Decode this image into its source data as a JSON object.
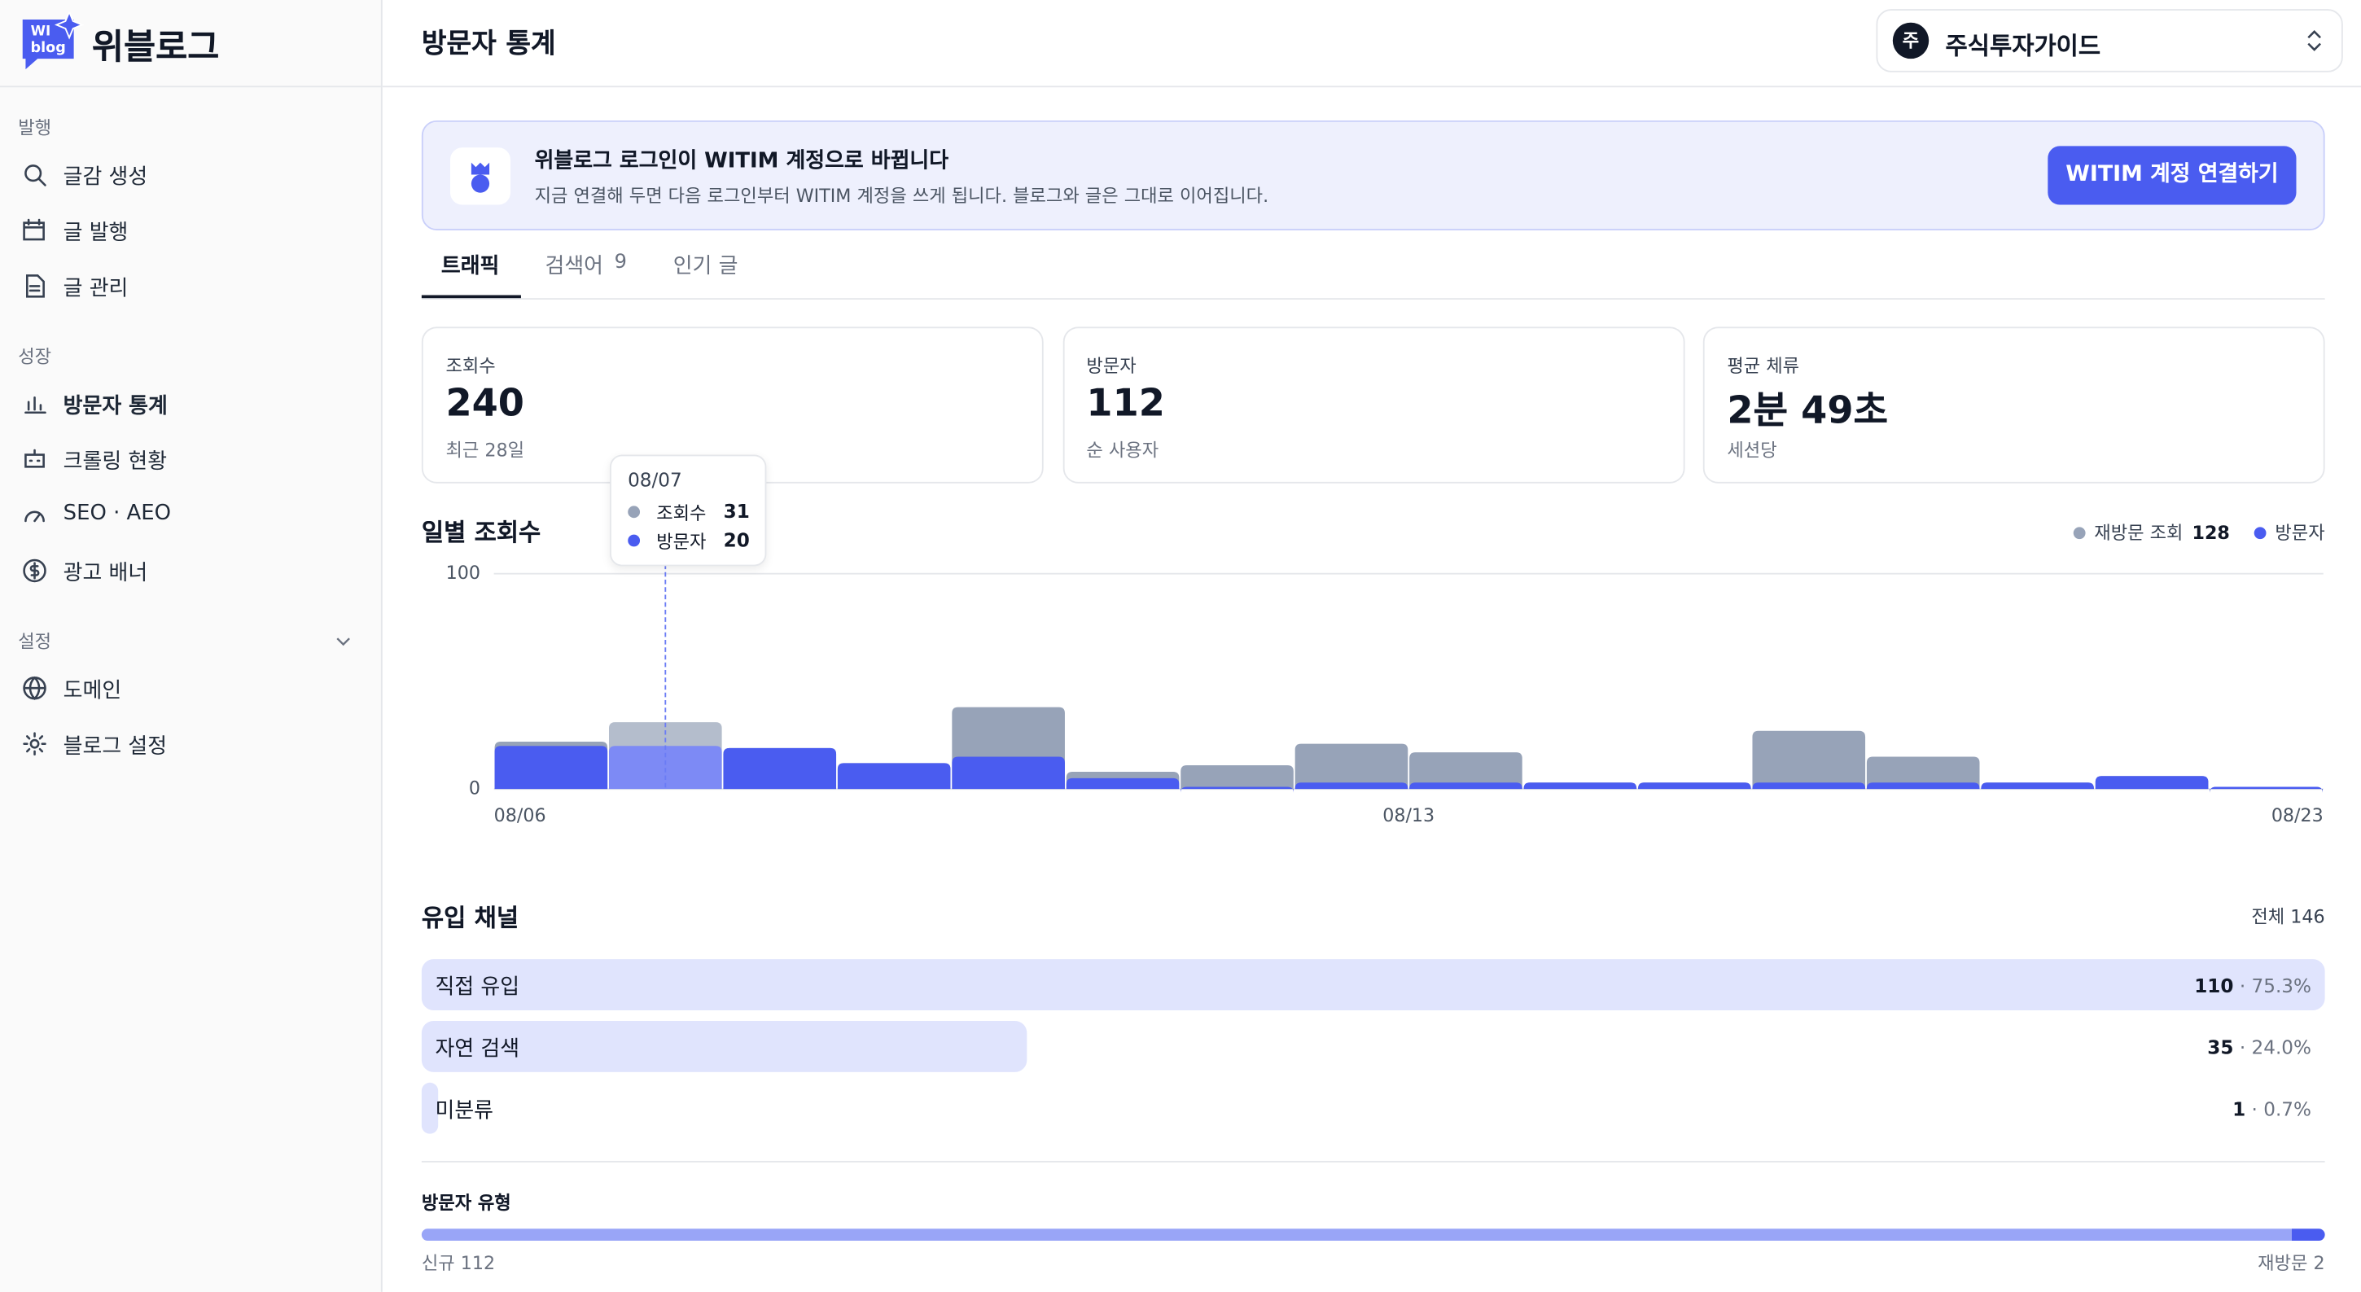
{
  "sidebar": {
    "brand": "위블로그",
    "logo_lines": [
      "WI",
      "blog"
    ],
    "sections": [
      {
        "title": "발행",
        "items": [
          "글감 생성",
          "글 발행",
          "글 관리"
        ]
      },
      {
        "title": "성장",
        "items": [
          "방문자 통계",
          "크롤링 현황",
          "SEO · AEO",
          "광고 배너"
        ]
      },
      {
        "title": "설정",
        "items": [
          "도메인",
          "블로그 설정"
        ]
      }
    ]
  },
  "header": {
    "title": "방문자 통계",
    "blog_initial": "주",
    "blog_name": "주식투자가이드"
  },
  "banner": {
    "title": "위블로그 로그인이 WITIM 계정으로 바뀝니다",
    "text": "지금 연결해 두면 다음 로그인부터 WITIM 계정을 쓰게 됩니다. 블로그와 글은 그대로 이어집니다.",
    "button": "WITIM 계정 연결하기"
  },
  "tabs": [
    {
      "label": "트래픽"
    },
    {
      "label": "검색어",
      "count": 9
    },
    {
      "label": "인기 글"
    }
  ],
  "stats": [
    {
      "label": "조회수",
      "value": "240",
      "sub": "최근 28일"
    },
    {
      "label": "방문자",
      "value": "112",
      "sub": "순 사용자"
    },
    {
      "label": "평균 체류",
      "value": "2분 49초",
      "sub": "세션당"
    }
  ],
  "chart_data": {
    "type": "bar",
    "title": "일별 조회수",
    "x_tick_labels": [
      "08/06",
      "08/13",
      "08/23"
    ],
    "series": [
      {
        "name": "조회수",
        "color": "#97a3b8",
        "values": [
          22,
          31,
          19,
          12,
          38,
          8,
          11,
          21,
          17,
          3,
          3,
          27,
          15,
          3,
          6,
          1
        ]
      },
      {
        "name": "방문자",
        "color": "#4a5cf0",
        "values": [
          20,
          20,
          19,
          12,
          15,
          5,
          1,
          3,
          3,
          3,
          3,
          3,
          3,
          3,
          6,
          1
        ]
      }
    ],
    "legend": [
      {
        "label": "재방문 조회",
        "value": 128,
        "color": "#97a3b8"
      },
      {
        "label": "방문자",
        "color": "#4a5cf0"
      }
    ],
    "tooltip": {
      "label": "08/07"
    },
    "ylim": [
      0,
      100
    ],
    "yticks": [
      0,
      100
    ],
    "grid": true
  },
  "channels": {
    "title": "유입 채널",
    "total_label": "전체",
    "total": 146,
    "rows": [
      {
        "name": "직접 유입",
        "value": 110,
        "percent": "75.3%"
      },
      {
        "name": "자연 검색",
        "value": 35,
        "percent": "24.0%"
      },
      {
        "name": "미분류",
        "value": 1,
        "percent": "0.7%"
      }
    ]
  },
  "visitor_type": {
    "title": "방문자 유형",
    "new_label": "신규",
    "new": 112,
    "return_label": "재방문",
    "return": 2
  }
}
